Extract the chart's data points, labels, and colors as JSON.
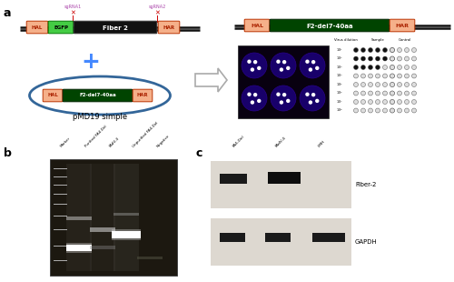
{
  "fig_width": 5.0,
  "fig_height": 3.1,
  "dpi": 100,
  "bg_color": "#ffffff",
  "panel_a_label": "a",
  "panel_b_label": "b",
  "panel_c_label": "c",
  "hal_color": "#f5b08a",
  "har_color": "#f5b08a",
  "egfp_color": "#44cc44",
  "fiber2_color": "#111111",
  "f2del_color": "#004400",
  "backbone_color": "#111111",
  "sgrna1_label": "sgRNA1",
  "sgrna2_label": "sgRNA2",
  "sgrna_color": "#aa44aa",
  "scissors_color": "#cc0000",
  "plasmid_color": "#336699",
  "plus_color": "#4488ff",
  "gel_bg": "#111111",
  "wb_bg_fiber": "#e8e0d8",
  "wb_bg_gapdh": "#e8e0d8"
}
